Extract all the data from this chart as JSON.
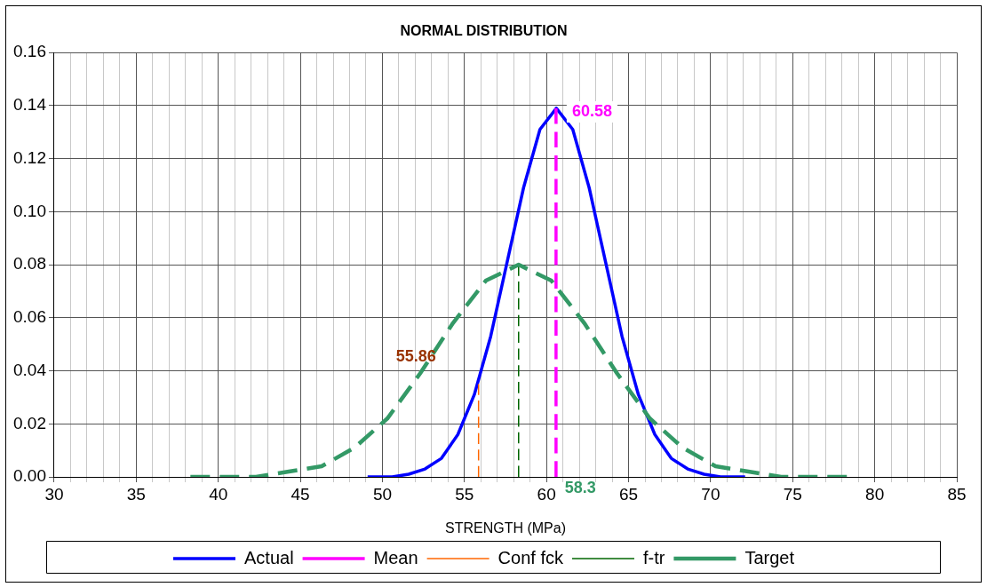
{
  "chart_data": {
    "type": "line",
    "title": "NORMAL DISTRIBUTION",
    "xlabel": "STRENGTH (MPa)",
    "series": [
      {
        "name": "Actual",
        "color": "#0000ff",
        "line_style": "solid",
        "x": [
          49.1,
          50.6,
          51.6,
          52.6,
          53.6,
          54.6,
          55.6,
          56.6,
          57.6,
          58.6,
          59.6,
          60.6,
          61.6,
          62.6,
          63.6,
          64.6,
          65.6,
          66.6,
          67.6,
          68.6,
          69.6,
          70.6,
          72.1
        ],
        "values": [
          0.0,
          0.0,
          0.001,
          0.003,
          0.007,
          0.016,
          0.031,
          0.053,
          0.081,
          0.109,
          0.131,
          0.139,
          0.131,
          0.109,
          0.081,
          0.053,
          0.031,
          0.016,
          0.007,
          0.003,
          0.001,
          0.0,
          0.0
        ]
      },
      {
        "name": "Mean",
        "color": "#ff00ff",
        "line_style": "dashed",
        "x": [
          60.58,
          60.58
        ],
        "values": [
          0,
          0.139
        ]
      },
      {
        "name": "Conf fck",
        "color": "#ff6600",
        "line_style": "dashed",
        "x": [
          55.86,
          55.86
        ],
        "values": [
          0,
          0.035
        ]
      },
      {
        "name": "f-tr",
        "color": "#006600",
        "line_style": "dashed",
        "x": [
          58.3,
          58.3
        ],
        "values": [
          0,
          0.08
        ]
      },
      {
        "name": "Target",
        "color": "#339966",
        "line_style": "dashed",
        "x": [
          38.3,
          40.3,
          42.3,
          44.3,
          46.3,
          48.3,
          50.3,
          52.3,
          54.3,
          56.3,
          58.3,
          60.3,
          62.3,
          64.3,
          66.3,
          68.3,
          70.3,
          72.3,
          74.3,
          76.3,
          78.3
        ],
        "values": [
          0.0,
          0.0,
          0.0,
          0.002,
          0.004,
          0.011,
          0.022,
          0.039,
          0.058,
          0.074,
          0.08,
          0.074,
          0.058,
          0.039,
          0.022,
          0.011,
          0.004,
          0.002,
          0.0,
          0.0,
          0.0
        ]
      }
    ],
    "annotations": [
      {
        "text": "60.58",
        "x": 60.58,
        "y": 0.139
      },
      {
        "text": "55.86",
        "x": 55.86,
        "y": 0.04
      },
      {
        "text": "58.3",
        "x": 58.3,
        "y": 0
      }
    ],
    "xlim": [
      30,
      85
    ],
    "xticks": [
      30,
      {
        "value": 31,
        "label": null
      },
      {
        "value": 32,
        "label": null
      },
      {
        "value": 33,
        "label": null
      },
      {
        "value": 34,
        "label": null
      },
      35,
      {
        "value": 36,
        "label": null
      },
      {
        "value": 37,
        "label": null
      },
      {
        "value": 38,
        "label": null
      },
      {
        "value": 39,
        "label": null
      },
      40,
      {
        "value": 41,
        "label": null
      },
      {
        "value": 42,
        "label": null
      },
      {
        "value": 43,
        "label": null
      },
      {
        "value": 44,
        "label": null
      },
      45,
      {
        "value": 46,
        "label": null
      },
      {
        "value": 47,
        "label": null
      },
      {
        "value": 48,
        "label": null
      },
      {
        "value": 49,
        "label": null
      },
      50,
      {
        "value": 51,
        "label": null
      },
      {
        "value": 52,
        "label": null
      },
      {
        "value": 53,
        "label": null
      },
      {
        "value": 54,
        "label": null
      },
      55,
      {
        "value": 56,
        "label": null
      },
      {
        "value": 57,
        "label": null
      },
      {
        "value": 58,
        "label": null
      },
      {
        "value": 59,
        "label": null
      },
      60,
      {
        "value": 61,
        "label": null
      },
      {
        "value": 62,
        "label": null
      },
      {
        "value": 63,
        "label": null
      },
      {
        "value": 64,
        "label": null
      },
      65,
      {
        "value": 66,
        "label": null
      },
      {
        "value": 67,
        "label": null
      },
      {
        "value": 68,
        "label": null
      },
      {
        "value": 69,
        "label": null
      },
      70,
      {
        "value": 71,
        "label": null
      },
      {
        "value": 72,
        "label": null
      },
      {
        "value": 73,
        "label": null
      },
      {
        "value": 74,
        "label": null
      },
      75,
      {
        "value": 76,
        "label": null
      },
      {
        "value": 77,
        "label": null
      },
      {
        "value": 78,
        "label": null
      },
      {
        "value": 79,
        "label": null
      },
      80,
      {
        "value": 81,
        "label": null
      },
      {
        "value": 82,
        "label": null
      },
      {
        "value": 83,
        "label": null
      },
      {
        "value": 84,
        "label": null
      },
      85
    ],
    "ylim": [
      0,
      0.16
    ],
    "yticks": [
      {
        "value": 0,
        "label": "0.00"
      },
      {
        "value": 0.02,
        "label": "0.02"
      },
      {
        "value": 0.04,
        "label": "0.04"
      },
      {
        "value": 0.06,
        "label": "0.06"
      },
      {
        "value": 0.08,
        "label": "0.08"
      },
      {
        "value": 0.1,
        "label": "0.10"
      },
      {
        "value": 0.12,
        "label": "0.12"
      },
      {
        "value": 0.14,
        "label": "0.14"
      },
      {
        "value": 0.16,
        "label": "0.16"
      }
    ],
    "grid": true,
    "legend": "bottom",
    "marker": "none"
  }
}
